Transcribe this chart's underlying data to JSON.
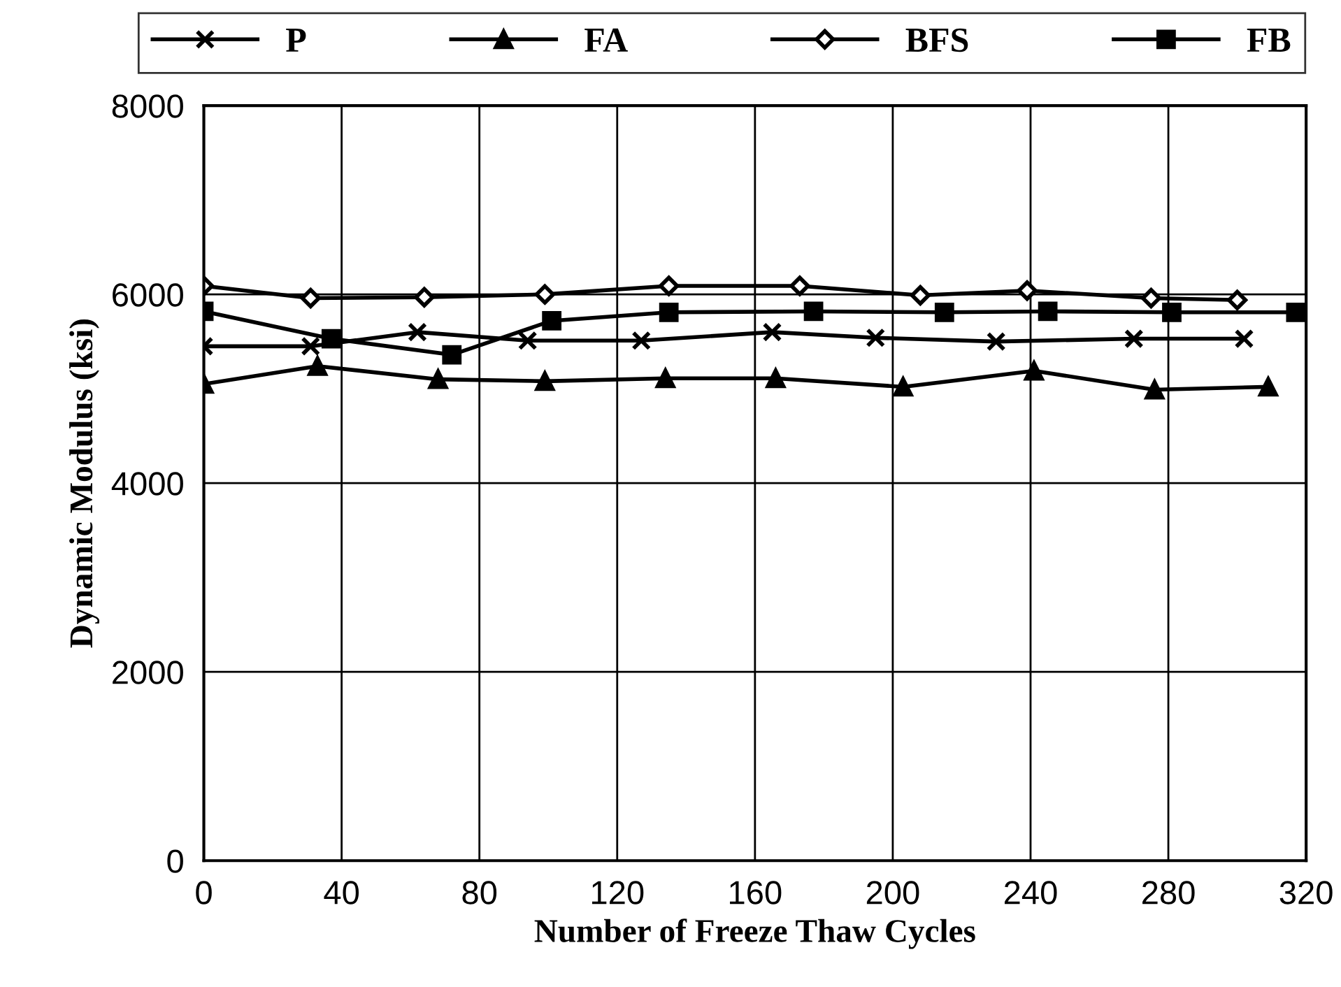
{
  "chart_data": {
    "type": "line",
    "xlabel": "Number of Freeze Thaw Cycles",
    "ylabel": "Dynamic Modulus (ksi)",
    "xlim": [
      0,
      320
    ],
    "xticks": [
      0,
      40,
      80,
      120,
      160,
      200,
      240,
      280,
      320
    ],
    "ylim": [
      0,
      8000
    ],
    "yticks": [
      0,
      2000,
      4000,
      6000,
      8000
    ],
    "grid": true,
    "legend": "top",
    "line_style": "solid",
    "series": [
      {
        "name": "P",
        "color": "#000000",
        "marker": "cross",
        "x": [
          0,
          31,
          62,
          94,
          127,
          165,
          195,
          230,
          270,
          302
        ],
        "values": [
          5450,
          5450,
          5600,
          5510,
          5510,
          5600,
          5540,
          5500,
          5530,
          5530
        ]
      },
      {
        "name": "FA",
        "color": "#000000",
        "marker": "triangle",
        "x": [
          0,
          33,
          68,
          99,
          134,
          166,
          203,
          241,
          276,
          309
        ],
        "values": [
          5050,
          5240,
          5100,
          5080,
          5110,
          5110,
          5020,
          5190,
          4990,
          5020
        ]
      },
      {
        "name": "BFS",
        "color": "#000000",
        "marker": "diamond",
        "x": [
          0,
          31,
          64,
          99,
          135,
          173,
          208,
          239,
          275,
          300
        ],
        "values": [
          6090,
          5960,
          5970,
          6000,
          6090,
          6090,
          5990,
          6040,
          5960,
          5940
        ]
      },
      {
        "name": "FB",
        "color": "#000000",
        "marker": "square",
        "x": [
          0,
          37,
          72,
          101,
          135,
          177,
          215,
          245,
          281,
          317
        ],
        "values": [
          5820,
          5530,
          5360,
          5720,
          5810,
          5820,
          5810,
          5820,
          5810,
          5810
        ]
      }
    ]
  }
}
